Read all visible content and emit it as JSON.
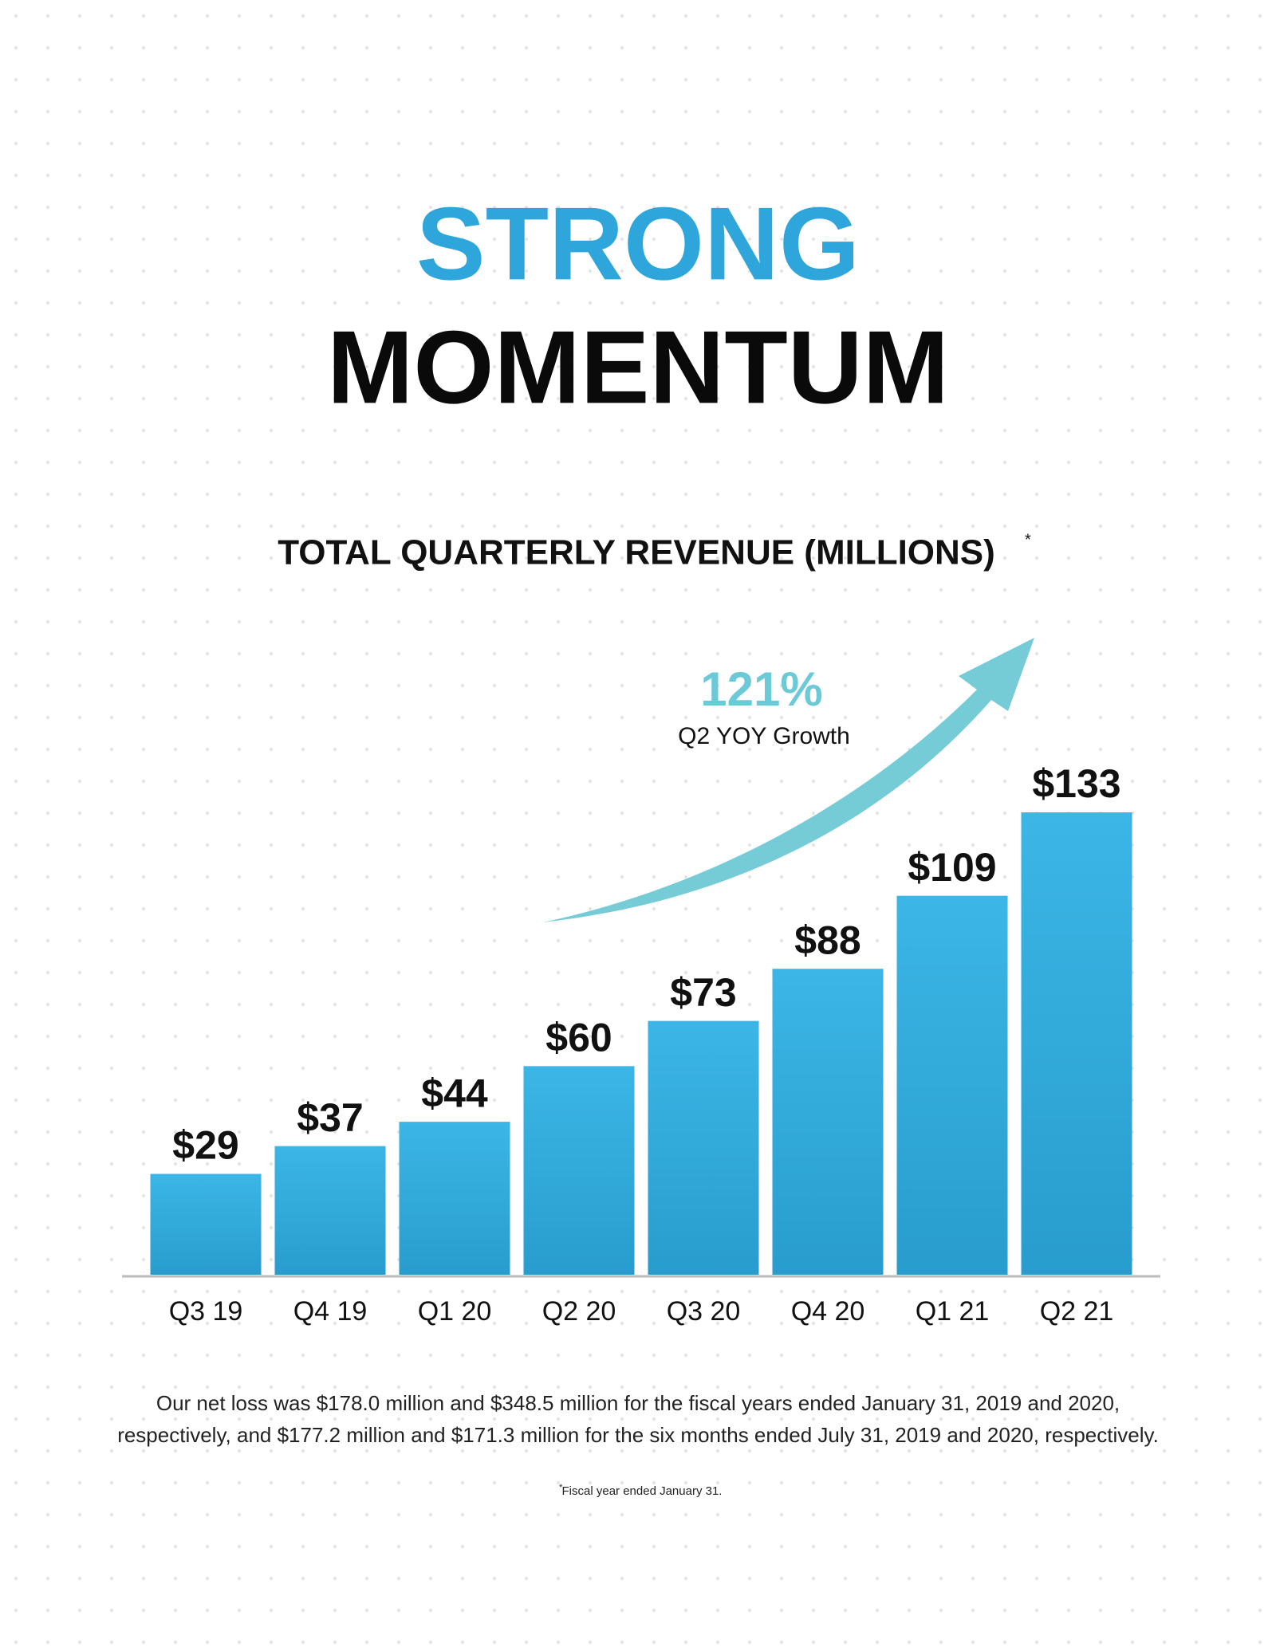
{
  "header": {
    "line1": "STRONG",
    "line2": "MOMENTUM"
  },
  "chart_data": {
    "type": "bar",
    "title": "TOTAL QUARTERLY REVENUE (MILLIONS)",
    "title_marker": "*",
    "categories": [
      "Q3 19",
      "Q4 19",
      "Q1 20",
      "Q2 20",
      "Q3 20",
      "Q4 20",
      "Q1 21",
      "Q2 21"
    ],
    "values": [
      29,
      37,
      44,
      60,
      73,
      88,
      109,
      133
    ],
    "value_labels": [
      "$29",
      "$37",
      "$44",
      "$60",
      "$73",
      "$88",
      "$109",
      "$133"
    ],
    "color": "#34ace0",
    "annotation": {
      "value": "121%",
      "label": "Q2 YOY Growth",
      "color": "#6ccad8"
    }
  },
  "footnotes": {
    "net_loss_line1": "Our net loss was $178.0 million and $348.5 million for the fiscal years ended January 31, 2019 and 2020,",
    "net_loss_line2": "respectively, and $177.2 million and $171.3 million for the six months ended July 31, 2019 and 2020, respectively.",
    "marker": "*",
    "fiscal_note": "Fiscal year ended January 31."
  }
}
